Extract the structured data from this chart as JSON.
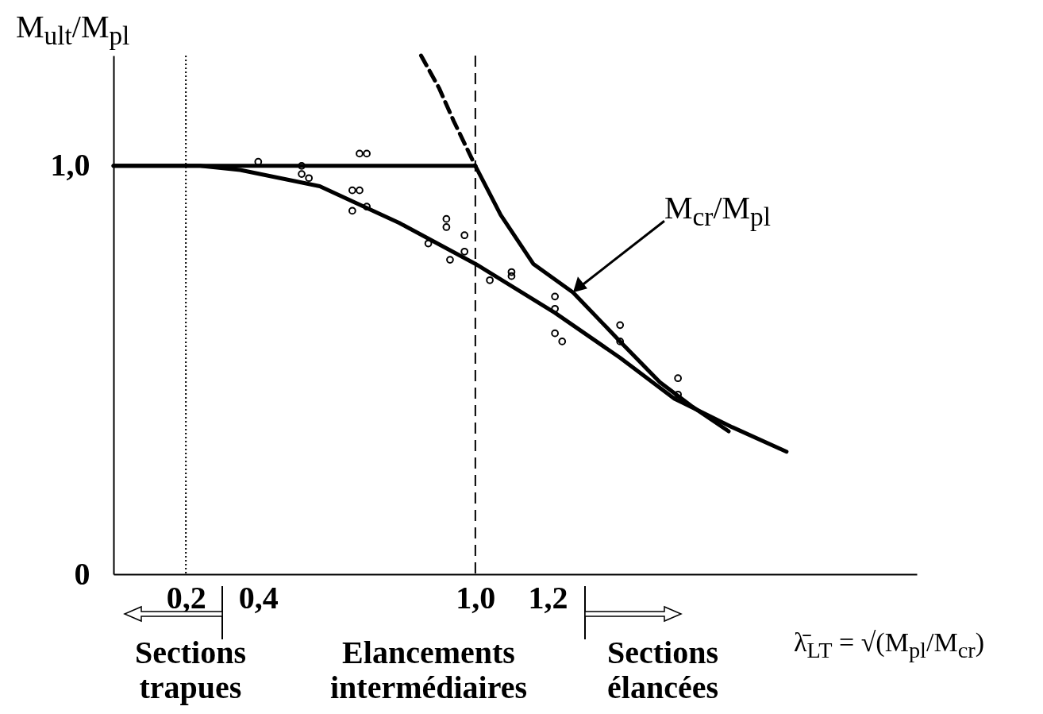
{
  "chart_data": {
    "type": "line",
    "ylabel": "M$_{ult}$/M$_{pl}$",
    "xlabel": "λ̄$_{LT}$ = √(M$_{pl}$/M$_{cr}$)",
    "xlim": [
      0,
      2.22
    ],
    "ylim": [
      0,
      1.27
    ],
    "xticks": [
      {
        "value": 0.2,
        "label": "0,2"
      },
      {
        "value": 0.4,
        "label": "0,4"
      },
      {
        "value": 1.0,
        "label": "1,0"
      },
      {
        "value": 1.2,
        "label": "1,2"
      }
    ],
    "yticks": [
      {
        "value": 0,
        "label": "0"
      },
      {
        "value": 1.0,
        "label": "1,0"
      }
    ],
    "grid": false,
    "series": [
      {
        "color": "#000000",
        "line_style": "solid",
        "x": [
          0,
          1.0
        ],
        "values": [
          1.0,
          1.0
        ]
      },
      {
        "color": "#000000",
        "line_style": "dashed",
        "x": [
          0.85,
          0.9,
          0.94,
          1.0
        ],
        "values": [
          1.27,
          1.19,
          1.11,
          1.0
        ]
      },
      {
        "color": "#000000",
        "line_style": "solid",
        "x": [
          1.0,
          1.07,
          1.16,
          1.27,
          1.4,
          1.51,
          1.6,
          1.7
        ],
        "values": [
          1.0,
          0.88,
          0.76,
          0.69,
          0.57,
          0.47,
          0.41,
          0.35
        ]
      },
      {
        "color": "#000000",
        "line_style": "solid",
        "x": [
          0,
          0.24,
          0.35,
          0.57,
          0.79,
          1.0,
          1.22,
          1.4,
          1.55,
          1.71,
          1.86
        ],
        "values": [
          1.0,
          1.0,
          0.99,
          0.95,
          0.86,
          0.76,
          0.64,
          0.53,
          0.43,
          0.36,
          0.3
        ]
      },
      {
        "type": "scatter",
        "color": "#000000",
        "marker": "circle",
        "x": [
          0.4,
          0.52,
          0.52,
          0.54,
          0.68,
          0.7,
          0.66,
          0.68,
          0.66,
          0.7,
          0.87,
          0.92,
          0.92,
          0.97,
          0.97,
          0.93,
          1.04,
          1.1,
          1.1,
          1.22,
          1.22,
          1.22,
          1.24,
          1.4,
          1.4,
          1.56,
          1.56
        ],
        "values": [
          1.01,
          1.0,
          0.98,
          0.97,
          1.03,
          1.03,
          0.94,
          0.94,
          0.89,
          0.9,
          0.81,
          0.87,
          0.85,
          0.83,
          0.79,
          0.77,
          0.72,
          0.74,
          0.73,
          0.68,
          0.65,
          0.59,
          0.57,
          0.61,
          0.57,
          0.48,
          0.44
        ]
      }
    ],
    "ref_lines": [
      {
        "axis": "x",
        "value": 0.2,
        "line_style": "dotted"
      },
      {
        "axis": "x",
        "value": 1.0,
        "line_style": "dashed"
      }
    ],
    "annotations": [
      {
        "text": "M$_{cr}$/M$_{pl}$",
        "x": 1.27,
        "y": 0.69
      },
      "Sections trapues",
      "Elancements intermédiaires",
      "Sections élancées"
    ]
  }
}
